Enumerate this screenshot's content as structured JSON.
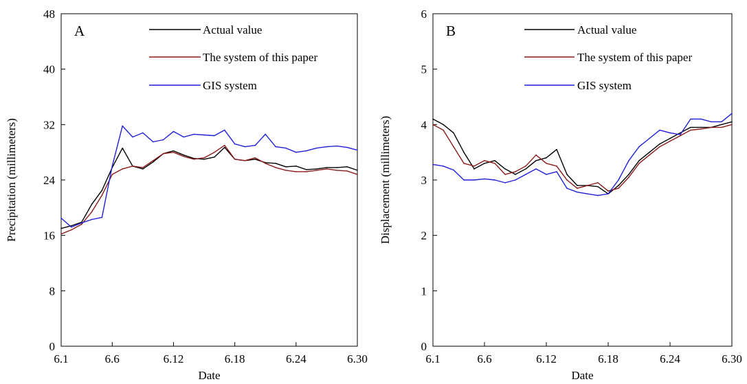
{
  "chart_data": [
    {
      "type": "line",
      "panel_label": "A",
      "xlabel": "Date",
      "ylabel": "Precipitation (millimeters)",
      "x_ticks": [
        "6.1",
        "6.6",
        "6.12",
        "6.18",
        "6.24",
        "6.30"
      ],
      "y_ticks": [
        "0",
        "8",
        "16",
        "24",
        "32",
        "40",
        "48"
      ],
      "ylim": [
        0,
        48
      ],
      "legend_position": "top-center",
      "series": [
        {
          "name": "Actual value",
          "color": "#000000",
          "x": [
            "6.1",
            "6.2",
            "6.3",
            "6.4",
            "6.5",
            "6.6",
            "6.7",
            "6.8",
            "6.9",
            "6.10",
            "6.11",
            "6.12",
            "6.13",
            "6.14",
            "6.15",
            "6.16",
            "6.17",
            "6.18",
            "6.19",
            "6.20",
            "6.21",
            "6.22",
            "6.23",
            "6.24",
            "6.25",
            "6.26",
            "6.27",
            "6.28",
            "6.29",
            "6.30"
          ],
          "values": [
            17.0,
            17.4,
            17.9,
            20.5,
            22.5,
            25.8,
            28.6,
            26.0,
            25.6,
            26.6,
            27.8,
            28.2,
            27.6,
            27.1,
            27.0,
            27.3,
            28.7,
            27.0,
            26.8,
            27.0,
            26.5,
            26.4,
            25.9,
            26.0,
            25.5,
            25.6,
            25.8,
            25.8,
            25.9,
            25.4
          ]
        },
        {
          "name": "The system of this paper",
          "color": "#8b1a1a",
          "x": [
            "6.1",
            "6.2",
            "6.3",
            "6.4",
            "6.5",
            "6.6",
            "6.7",
            "6.8",
            "6.9",
            "6.10",
            "6.11",
            "6.12",
            "6.13",
            "6.14",
            "6.15",
            "6.16",
            "6.17",
            "6.18",
            "6.19",
            "6.20",
            "6.21",
            "6.22",
            "6.23",
            "6.24",
            "6.25",
            "6.26",
            "6.27",
            "6.28",
            "6.29",
            "6.30"
          ],
          "values": [
            16.2,
            16.8,
            17.6,
            19.4,
            21.8,
            24.8,
            25.6,
            26.0,
            25.8,
            26.8,
            27.8,
            28.0,
            27.4,
            27.0,
            27.2,
            28.0,
            29.0,
            27.0,
            26.8,
            27.2,
            26.4,
            25.8,
            25.4,
            25.2,
            25.2,
            25.4,
            25.6,
            25.4,
            25.3,
            24.8
          ]
        },
        {
          "name": "GIS system",
          "color": "#1f1fd6",
          "x": [
            "6.1",
            "6.2",
            "6.3",
            "6.4",
            "6.5",
            "6.6",
            "6.7",
            "6.8",
            "6.9",
            "6.10",
            "6.11",
            "6.12",
            "6.13",
            "6.14",
            "6.15",
            "6.16",
            "6.17",
            "6.18",
            "6.19",
            "6.20",
            "6.21",
            "6.22",
            "6.23",
            "6.24",
            "6.25",
            "6.26",
            "6.27",
            "6.28",
            "6.29",
            "6.30"
          ],
          "values": [
            18.5,
            17.2,
            17.8,
            18.3,
            18.6,
            26.0,
            31.8,
            30.2,
            30.8,
            29.5,
            29.8,
            31.0,
            30.2,
            30.6,
            30.5,
            30.4,
            31.2,
            29.2,
            28.8,
            29.0,
            30.6,
            28.8,
            28.6,
            28.0,
            28.2,
            28.6,
            28.8,
            28.9,
            28.7,
            28.3
          ]
        }
      ]
    },
    {
      "type": "line",
      "panel_label": "B",
      "xlabel": "Date",
      "ylabel": "Displacement (millimeters)",
      "x_ticks": [
        "6.1",
        "6.6",
        "6.12",
        "6.18",
        "6.24",
        "6.30"
      ],
      "y_ticks": [
        "0",
        "1",
        "2",
        "3",
        "4",
        "5",
        "6"
      ],
      "ylim": [
        0,
        6
      ],
      "legend_position": "top-center",
      "series": [
        {
          "name": "Actual value",
          "color": "#000000",
          "x": [
            "6.1",
            "6.2",
            "6.3",
            "6.4",
            "6.5",
            "6.6",
            "6.7",
            "6.8",
            "6.9",
            "6.10",
            "6.11",
            "6.12",
            "6.13",
            "6.14",
            "6.15",
            "6.16",
            "6.17",
            "6.18",
            "6.19",
            "6.20",
            "6.21",
            "6.22",
            "6.23",
            "6.24",
            "6.25",
            "6.26",
            "6.27",
            "6.28",
            "6.29",
            "6.30"
          ],
          "values": [
            4.1,
            4.0,
            3.85,
            3.5,
            3.2,
            3.3,
            3.35,
            3.2,
            3.1,
            3.2,
            3.35,
            3.4,
            3.55,
            3.1,
            2.9,
            2.9,
            2.88,
            2.75,
            2.9,
            3.1,
            3.35,
            3.5,
            3.65,
            3.75,
            3.85,
            3.95,
            3.95,
            3.95,
            4.0,
            4.05
          ]
        },
        {
          "name": "The system of this paper",
          "color": "#8b1a1a",
          "x": [
            "6.1",
            "6.2",
            "6.3",
            "6.4",
            "6.5",
            "6.6",
            "6.7",
            "6.8",
            "6.9",
            "6.10",
            "6.11",
            "6.12",
            "6.13",
            "6.14",
            "6.15",
            "6.16",
            "6.17",
            "6.18",
            "6.19",
            "6.20",
            "6.21",
            "6.22",
            "6.23",
            "6.24",
            "6.25",
            "6.26",
            "6.27",
            "6.28",
            "6.29",
            "6.30"
          ],
          "values": [
            4.0,
            3.9,
            3.6,
            3.3,
            3.25,
            3.35,
            3.3,
            3.1,
            3.15,
            3.25,
            3.45,
            3.3,
            3.25,
            3.0,
            2.85,
            2.9,
            2.95,
            2.8,
            2.85,
            3.05,
            3.3,
            3.45,
            3.6,
            3.7,
            3.8,
            3.9,
            3.92,
            3.95,
            3.95,
            4.0
          ]
        },
        {
          "name": "GIS system",
          "color": "#1f1fd6",
          "x": [
            "6.1",
            "6.2",
            "6.3",
            "6.4",
            "6.5",
            "6.6",
            "6.7",
            "6.8",
            "6.9",
            "6.10",
            "6.11",
            "6.12",
            "6.13",
            "6.14",
            "6.15",
            "6.16",
            "6.17",
            "6.18",
            "6.19",
            "6.20",
            "6.21",
            "6.22",
            "6.23",
            "6.24",
            "6.25",
            "6.26",
            "6.27",
            "6.28",
            "6.29",
            "6.30"
          ],
          "values": [
            3.28,
            3.25,
            3.18,
            3.0,
            3.0,
            3.02,
            3.0,
            2.95,
            3.0,
            3.1,
            3.2,
            3.1,
            3.15,
            2.85,
            2.78,
            2.75,
            2.72,
            2.75,
            3.0,
            3.35,
            3.6,
            3.75,
            3.9,
            3.85,
            3.82,
            4.1,
            4.1,
            4.05,
            4.05,
            4.2
          ]
        }
      ]
    }
  ]
}
